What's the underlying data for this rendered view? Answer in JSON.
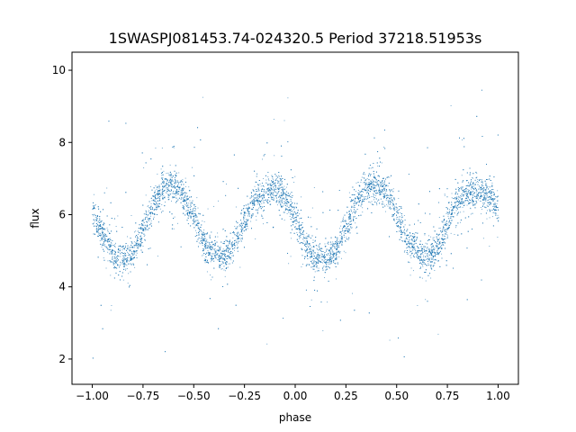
{
  "chart_data": {
    "type": "scatter",
    "title": "1SWASPJ081453.74-024320.5 Period 37218.51953s",
    "xlabel": "phase",
    "ylabel": "flux",
    "xlim": [
      -1.1,
      1.1
    ],
    "ylim": [
      1.3,
      10.5
    ],
    "xticks": [
      "−1.00",
      "−0.75",
      "−0.50",
      "−0.25",
      "0.00",
      "0.25",
      "0.50",
      "0.75",
      "1.00"
    ],
    "xtick_values": [
      -1.0,
      -0.75,
      -0.5,
      -0.25,
      0.0,
      0.25,
      0.5,
      0.75,
      1.0
    ],
    "yticks": [
      "2",
      "4",
      "6",
      "8",
      "10"
    ],
    "ytick_values": [
      2,
      4,
      6,
      8,
      10
    ],
    "grid": false,
    "marker_color": "#1f77b4",
    "series": [
      {
        "phase": [
          -1.0,
          -0.95,
          -0.9,
          -0.85,
          -0.8,
          -0.75,
          -0.7,
          -0.65,
          -0.6,
          -0.55,
          -0.5,
          -0.45,
          -0.4,
          -0.35,
          -0.3,
          -0.25,
          -0.2,
          -0.15,
          -0.1,
          -0.05,
          0.0,
          0.05,
          0.1,
          0.15,
          0.2,
          0.25,
          0.3,
          0.35,
          0.4,
          0.45,
          0.5,
          0.55,
          0.6,
          0.65,
          0.7,
          0.75,
          0.8,
          0.85,
          0.9,
          0.95,
          1.0
        ],
        "mean_flux": [
          6.1,
          5.5,
          4.9,
          4.75,
          4.95,
          5.6,
          6.3,
          6.8,
          6.85,
          6.5,
          5.9,
          5.2,
          4.95,
          4.85,
          5.2,
          5.9,
          6.4,
          6.65,
          6.7,
          6.5,
          5.9,
          5.2,
          4.8,
          4.75,
          5.0,
          5.7,
          6.4,
          6.75,
          6.85,
          6.6,
          6.0,
          5.3,
          4.95,
          4.85,
          5.05,
          5.8,
          6.45,
          6.6,
          6.7,
          6.55,
          6.2
        ]
      }
    ]
  }
}
